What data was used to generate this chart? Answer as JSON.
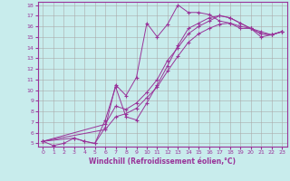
{
  "xlabel": "Windchill (Refroidissement éolien,°C)",
  "bg_color": "#c8ecec",
  "line_color": "#993399",
  "grid_color": "#aaaaaa",
  "xlim": [
    -0.5,
    23.5
  ],
  "ylim": [
    4.7,
    18.3
  ],
  "xticks": [
    0,
    1,
    2,
    3,
    4,
    5,
    6,
    7,
    8,
    9,
    10,
    11,
    12,
    13,
    14,
    15,
    16,
    17,
    18,
    19,
    20,
    21,
    22,
    23
  ],
  "yticks": [
    5,
    6,
    7,
    8,
    9,
    10,
    11,
    12,
    13,
    14,
    15,
    16,
    17,
    18
  ],
  "series": [
    {
      "x": [
        0,
        1,
        2,
        3,
        4,
        5,
        6,
        7,
        8,
        9,
        10,
        11,
        12,
        13,
        14,
        15,
        16,
        17,
        18,
        19,
        20,
        21,
        22,
        23
      ],
      "y": [
        5.2,
        4.8,
        5.0,
        5.5,
        5.2,
        5.0,
        6.5,
        10.5,
        9.5,
        11.2,
        16.3,
        15.0,
        16.2,
        18.0,
        17.3,
        17.3,
        17.1,
        16.5,
        16.3,
        15.8,
        15.8,
        15.0,
        15.2,
        15.5
      ]
    },
    {
      "x": [
        0,
        3,
        4,
        5,
        6,
        7,
        8,
        9,
        10,
        11,
        12,
        13,
        14,
        15,
        16,
        17,
        18,
        19,
        20,
        21,
        22,
        23
      ],
      "y": [
        5.2,
        5.5,
        5.2,
        5.0,
        7.2,
        10.3,
        7.5,
        7.2,
        8.8,
        10.5,
        12.3,
        14.2,
        15.8,
        16.3,
        16.8,
        17.0,
        16.8,
        16.3,
        15.8,
        15.3,
        15.2,
        15.5
      ]
    },
    {
      "x": [
        0,
        23
      ],
      "y": [
        5.2,
        15.5
      ]
    },
    {
      "x": [
        0,
        23
      ],
      "y": [
        5.2,
        15.5
      ]
    }
  ],
  "series2": [
    {
      "x": [
        0,
        6,
        7,
        8,
        9,
        10,
        11,
        12,
        13,
        14,
        15,
        16,
        17,
        18,
        19,
        20,
        21,
        22,
        23
      ],
      "y": [
        5.2,
        6.8,
        8.5,
        8.2,
        8.8,
        9.8,
        11.0,
        12.8,
        14.0,
        15.3,
        16.0,
        16.5,
        17.0,
        16.8,
        16.3,
        15.8,
        15.3,
        15.2,
        15.5
      ]
    },
    {
      "x": [
        0,
        6,
        7,
        8,
        9,
        10,
        11,
        12,
        13,
        14,
        15,
        16,
        17,
        18,
        19,
        20,
        21,
        22,
        23
      ],
      "y": [
        5.2,
        6.3,
        7.5,
        7.8,
        8.3,
        9.3,
        10.3,
        11.8,
        13.2,
        14.5,
        15.3,
        15.8,
        16.2,
        16.3,
        16.0,
        15.8,
        15.5,
        15.2,
        15.5
      ]
    }
  ]
}
